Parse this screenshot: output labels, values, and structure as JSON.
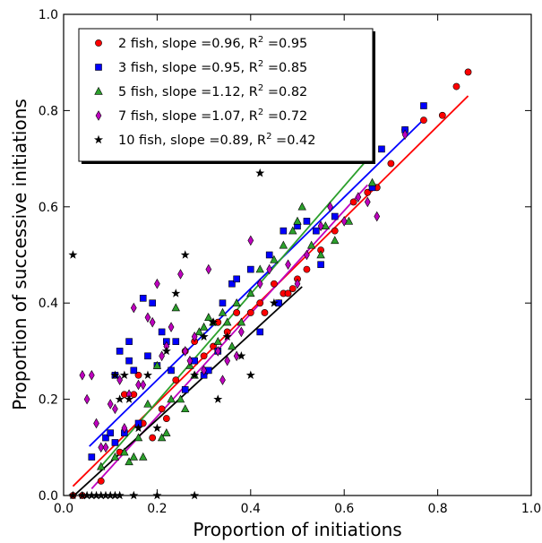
{
  "chart_data": {
    "type": "scatter",
    "title": "",
    "xlabel": "Proportion of initiations",
    "ylabel": "Proportion of successive initiations",
    "xlim": [
      0.0,
      1.0
    ],
    "ylim": [
      0.0,
      1.0
    ],
    "xticks": [
      "0.0",
      "0.2",
      "0.4",
      "0.6",
      "0.8",
      "1.0"
    ],
    "yticks": [
      "0.0",
      "0.2",
      "0.4",
      "0.6",
      "0.8",
      "1.0"
    ],
    "grid": false,
    "legend_position": "top-left",
    "series": [
      {
        "name": "2 fish, slope =0.96, R² =0.95",
        "legend_prefix": "2 fish, slope =0.96, R",
        "legend_suffix": " =0.95",
        "marker": "circle",
        "color": "#ff0000",
        "fit": {
          "x0": 0.02,
          "x1": 0.865,
          "slope": 0.96,
          "intercept": 0.0
        },
        "points": [
          [
            0.02,
            0.0
          ],
          [
            0.04,
            0.0
          ],
          [
            0.08,
            0.03
          ],
          [
            0.12,
            0.09
          ],
          [
            0.13,
            0.21
          ],
          [
            0.15,
            0.21
          ],
          [
            0.16,
            0.25
          ],
          [
            0.17,
            0.15
          ],
          [
            0.19,
            0.12
          ],
          [
            0.21,
            0.18
          ],
          [
            0.22,
            0.16
          ],
          [
            0.24,
            0.24
          ],
          [
            0.26,
            0.3
          ],
          [
            0.28,
            0.32
          ],
          [
            0.3,
            0.29
          ],
          [
            0.32,
            0.31
          ],
          [
            0.33,
            0.36
          ],
          [
            0.35,
            0.34
          ],
          [
            0.37,
            0.38
          ],
          [
            0.4,
            0.38
          ],
          [
            0.42,
            0.4
          ],
          [
            0.43,
            0.38
          ],
          [
            0.45,
            0.44
          ],
          [
            0.46,
            0.4
          ],
          [
            0.47,
            0.42
          ],
          [
            0.48,
            0.42
          ],
          [
            0.49,
            0.43
          ],
          [
            0.5,
            0.45
          ],
          [
            0.52,
            0.47
          ],
          [
            0.55,
            0.51
          ],
          [
            0.58,
            0.55
          ],
          [
            0.62,
            0.61
          ],
          [
            0.65,
            0.63
          ],
          [
            0.67,
            0.64
          ],
          [
            0.7,
            0.69
          ],
          [
            0.73,
            0.76
          ],
          [
            0.77,
            0.78
          ],
          [
            0.81,
            0.79
          ],
          [
            0.84,
            0.85
          ],
          [
            0.865,
            0.88
          ]
        ]
      },
      {
        "name": "3 fish, slope =0.95, R² =0.85",
        "legend_prefix": "3 fish, slope =0.95, R",
        "legend_suffix": " =0.85",
        "marker": "square",
        "color": "#0000ff",
        "fit": {
          "x0": 0.055,
          "x1": 0.765,
          "slope": 0.95,
          "intercept": 0.05
        },
        "points": [
          [
            0.06,
            0.08
          ],
          [
            0.09,
            0.12
          ],
          [
            0.1,
            0.13
          ],
          [
            0.11,
            0.25
          ],
          [
            0.11,
            0.11
          ],
          [
            0.12,
            0.3
          ],
          [
            0.13,
            0.13
          ],
          [
            0.14,
            0.32
          ],
          [
            0.14,
            0.28
          ],
          [
            0.15,
            0.26
          ],
          [
            0.16,
            0.15
          ],
          [
            0.17,
            0.41
          ],
          [
            0.18,
            0.29
          ],
          [
            0.19,
            0.4
          ],
          [
            0.2,
            0.27
          ],
          [
            0.21,
            0.34
          ],
          [
            0.22,
            0.32
          ],
          [
            0.23,
            0.26
          ],
          [
            0.24,
            0.32
          ],
          [
            0.26,
            0.22
          ],
          [
            0.28,
            0.28
          ],
          [
            0.3,
            0.25
          ],
          [
            0.31,
            0.26
          ],
          [
            0.33,
            0.3
          ],
          [
            0.34,
            0.4
          ],
          [
            0.36,
            0.44
          ],
          [
            0.37,
            0.45
          ],
          [
            0.4,
            0.47
          ],
          [
            0.42,
            0.34
          ],
          [
            0.44,
            0.5
          ],
          [
            0.46,
            0.4
          ],
          [
            0.47,
            0.55
          ],
          [
            0.5,
            0.56
          ],
          [
            0.52,
            0.57
          ],
          [
            0.54,
            0.55
          ],
          [
            0.55,
            0.48
          ],
          [
            0.58,
            0.58
          ],
          [
            0.66,
            0.64
          ],
          [
            0.68,
            0.72
          ],
          [
            0.73,
            0.76
          ],
          [
            0.77,
            0.81
          ]
        ]
      },
      {
        "name": "5 fish, slope =1.12, R² =0.82",
        "legend_prefix": "5 fish, slope =1.12, R",
        "legend_suffix": " =0.82",
        "marker": "triangle",
        "color": "#2ca02c",
        "fit": {
          "x0": 0.08,
          "x1": 0.65,
          "slope": 1.12,
          "intercept": -0.029
        },
        "points": [
          [
            0.08,
            0.06
          ],
          [
            0.11,
            0.08
          ],
          [
            0.13,
            0.09
          ],
          [
            0.14,
            0.07
          ],
          [
            0.15,
            0.08
          ],
          [
            0.16,
            0.12
          ],
          [
            0.17,
            0.08
          ],
          [
            0.18,
            0.19
          ],
          [
            0.2,
            0.27
          ],
          [
            0.21,
            0.12
          ],
          [
            0.22,
            0.13
          ],
          [
            0.23,
            0.2
          ],
          [
            0.24,
            0.39
          ],
          [
            0.25,
            0.2
          ],
          [
            0.26,
            0.18
          ],
          [
            0.27,
            0.27
          ],
          [
            0.28,
            0.25
          ],
          [
            0.29,
            0.34
          ],
          [
            0.3,
            0.35
          ],
          [
            0.31,
            0.37
          ],
          [
            0.32,
            0.36
          ],
          [
            0.33,
            0.32
          ],
          [
            0.34,
            0.38
          ],
          [
            0.35,
            0.36
          ],
          [
            0.36,
            0.31
          ],
          [
            0.37,
            0.4
          ],
          [
            0.38,
            0.36
          ],
          [
            0.4,
            0.42
          ],
          [
            0.42,
            0.47
          ],
          [
            0.45,
            0.49
          ],
          [
            0.47,
            0.52
          ],
          [
            0.49,
            0.55
          ],
          [
            0.5,
            0.57
          ],
          [
            0.51,
            0.6
          ],
          [
            0.53,
            0.52
          ],
          [
            0.55,
            0.5
          ],
          [
            0.56,
            0.56
          ],
          [
            0.58,
            0.53
          ],
          [
            0.61,
            0.57
          ],
          [
            0.66,
            0.65
          ]
        ]
      },
      {
        "name": "7 fish, slope =1.07, R² =0.72",
        "legend_prefix": "7 fish, slope =1.07, R",
        "legend_suffix": " =0.72",
        "marker": "diamond",
        "color": "#bf00bf",
        "fit": {
          "x0": 0.06,
          "x1": 0.65,
          "slope": 1.07,
          "intercept": -0.05
        },
        "points": [
          [
            0.04,
            0.25
          ],
          [
            0.05,
            0.2
          ],
          [
            0.06,
            0.25
          ],
          [
            0.07,
            0.15
          ],
          [
            0.08,
            0.1
          ],
          [
            0.09,
            0.1
          ],
          [
            0.1,
            0.19
          ],
          [
            0.11,
            0.18
          ],
          [
            0.12,
            0.24
          ],
          [
            0.13,
            0.14
          ],
          [
            0.14,
            0.21
          ],
          [
            0.15,
            0.39
          ],
          [
            0.16,
            0.23
          ],
          [
            0.17,
            0.23
          ],
          [
            0.18,
            0.37
          ],
          [
            0.19,
            0.36
          ],
          [
            0.2,
            0.44
          ],
          [
            0.21,
            0.29
          ],
          [
            0.22,
            0.31
          ],
          [
            0.23,
            0.35
          ],
          [
            0.25,
            0.46
          ],
          [
            0.26,
            0.3
          ],
          [
            0.27,
            0.28
          ],
          [
            0.28,
            0.33
          ],
          [
            0.3,
            0.26
          ],
          [
            0.31,
            0.47
          ],
          [
            0.33,
            0.3
          ],
          [
            0.34,
            0.24
          ],
          [
            0.35,
            0.28
          ],
          [
            0.37,
            0.29
          ],
          [
            0.38,
            0.34
          ],
          [
            0.4,
            0.53
          ],
          [
            0.42,
            0.44
          ],
          [
            0.44,
            0.47
          ],
          [
            0.48,
            0.48
          ],
          [
            0.5,
            0.44
          ],
          [
            0.52,
            0.5
          ],
          [
            0.55,
            0.56
          ],
          [
            0.57,
            0.6
          ],
          [
            0.6,
            0.57
          ],
          [
            0.63,
            0.62
          ],
          [
            0.65,
            0.61
          ],
          [
            0.67,
            0.58
          ],
          [
            0.73,
            0.75
          ]
        ]
      },
      {
        "name": "10 fish, slope =0.89, R² =0.42",
        "legend_prefix": "10 fish, slope =0.89, R",
        "legend_suffix": " =0.42",
        "marker": "star",
        "color": "#000000",
        "fit": {
          "x0": 0.02,
          "x1": 0.51,
          "slope": 0.89,
          "intercept": -0.02
        },
        "points": [
          [
            0.02,
            0.0
          ],
          [
            0.04,
            0.0
          ],
          [
            0.05,
            0.0
          ],
          [
            0.06,
            0.0
          ],
          [
            0.07,
            0.0
          ],
          [
            0.08,
            0.0
          ],
          [
            0.09,
            0.0
          ],
          [
            0.1,
            0.0
          ],
          [
            0.11,
            0.0
          ],
          [
            0.12,
            0.0
          ],
          [
            0.15,
            0.0
          ],
          [
            0.2,
            0.0
          ],
          [
            0.28,
            0.0
          ],
          [
            0.02,
            0.5
          ],
          [
            0.11,
            0.25
          ],
          [
            0.12,
            0.2
          ],
          [
            0.13,
            0.25
          ],
          [
            0.14,
            0.2
          ],
          [
            0.16,
            0.14
          ],
          [
            0.18,
            0.25
          ],
          [
            0.2,
            0.14
          ],
          [
            0.22,
            0.3
          ],
          [
            0.24,
            0.42
          ],
          [
            0.26,
            0.5
          ],
          [
            0.28,
            0.25
          ],
          [
            0.3,
            0.33
          ],
          [
            0.32,
            0.36
          ],
          [
            0.33,
            0.2
          ],
          [
            0.35,
            0.33
          ],
          [
            0.38,
            0.29
          ],
          [
            0.4,
            0.25
          ],
          [
            0.42,
            0.67
          ],
          [
            0.45,
            0.4
          ]
        ]
      }
    ]
  }
}
